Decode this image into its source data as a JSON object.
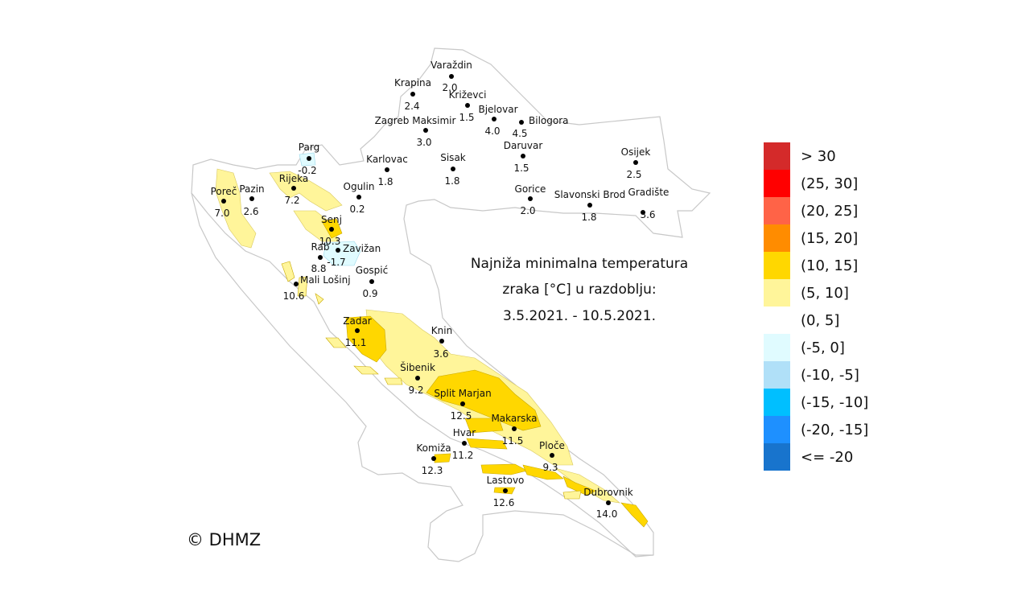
{
  "title_lines": [
    "Najniža minimalna temperatura",
    "zraka [°C] u razdoblju:",
    "3.5.2021. - 10.5.2021."
  ],
  "copyright": "© DHMZ",
  "legend": [
    {
      "label": "> 30",
      "color": "#d42a2a"
    },
    {
      "label": "(25, 30]",
      "color": "#ff0000"
    },
    {
      "label": "(20, 25]",
      "color": "#ff6347"
    },
    {
      "label": "(15, 20]",
      "color": "#ff8c00"
    },
    {
      "label": "(10, 15]",
      "color": "#ffd700"
    },
    {
      "label": "(5, 10]",
      "color": "#fff59a"
    },
    {
      "label": "(0, 5]",
      "color": "#ffffff"
    },
    {
      "label": "(-5, 0]",
      "color": "#e0fbff"
    },
    {
      "label": "(-10, -5]",
      "color": "#b0e0f8"
    },
    {
      "label": "(-15, -10]",
      "color": "#00bfff"
    },
    {
      "label": "(-20, -15]",
      "color": "#1e90ff"
    },
    {
      "label": "<= -20",
      "color": "#1874cd"
    }
  ],
  "stations": [
    {
      "name": "Varaždin",
      "value": "2.0"
    },
    {
      "name": "Krapina",
      "value": "2.4"
    },
    {
      "name": "Križevci",
      "value": "1.5"
    },
    {
      "name": "Bjelovar",
      "value": "4.0"
    },
    {
      "name": "Bilogora",
      "value": "4.5"
    },
    {
      "name": "Zagreb Maksimir",
      "value": "3.0"
    },
    {
      "name": "Daruvar",
      "value": "1.5"
    },
    {
      "name": "Osijek",
      "value": "2.5"
    },
    {
      "name": "Parg",
      "value": "-0.2"
    },
    {
      "name": "Karlovac",
      "value": "1.8"
    },
    {
      "name": "Sisak",
      "value": "1.8"
    },
    {
      "name": "Poreč",
      "value": "7.0"
    },
    {
      "name": "Pazin",
      "value": "2.6"
    },
    {
      "name": "Rijeka",
      "value": "7.2"
    },
    {
      "name": "Ogulin",
      "value": "0.2"
    },
    {
      "name": "Gorice",
      "value": "2.0"
    },
    {
      "name": "Slavonski Brod",
      "value": "1.8"
    },
    {
      "name": "Gradište",
      "value": "3.6"
    },
    {
      "name": "Senj",
      "value": "10.3"
    },
    {
      "name": "Rab",
      "value": "8.8"
    },
    {
      "name": "Zavižan",
      "value": "-1.7"
    },
    {
      "name": "Gospić",
      "value": "0.9"
    },
    {
      "name": "Mali Lošinj",
      "value": "10.6"
    },
    {
      "name": "Zadar",
      "value": "11.1"
    },
    {
      "name": "Knin",
      "value": "3.6"
    },
    {
      "name": "Šibenik",
      "value": "9.2"
    },
    {
      "name": "Split Marjan",
      "value": "12.5"
    },
    {
      "name": "Makarska",
      "value": "11.5"
    },
    {
      "name": "Hvar",
      "value": "11.2"
    },
    {
      "name": "Komiža",
      "value": "12.3"
    },
    {
      "name": "Ploče",
      "value": "9.3"
    },
    {
      "name": "Lastovo",
      "value": "12.6"
    },
    {
      "name": "Dubrovnik",
      "value": "14.0"
    }
  ]
}
